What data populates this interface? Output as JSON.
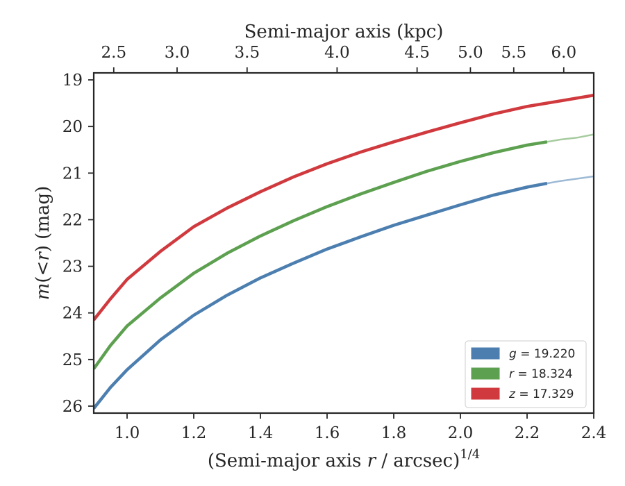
{
  "chart_data": {
    "type": "line",
    "xlabel_bottom": "(Semi-major axis r / arcsec)",
    "xlabel_bottom_superscript": "1/4",
    "xlabel_bottom_italic_symbol": "r",
    "xlabel_top": "Semi-major axis (kpc)",
    "ylabel": "m(<r) (mag)",
    "ylabel_parts": {
      "pre": "m",
      "mid": "(<",
      "sym": "r",
      "post": ") (mag)"
    },
    "xlim": [
      0.9,
      2.4
    ],
    "ylim": [
      26.15,
      18.85
    ],
    "y_inverted": true,
    "x_ticks": [
      1.0,
      1.2,
      1.4,
      1.6,
      1.8,
      2.0,
      2.2,
      2.4
    ],
    "x_tick_labels": [
      "1.0",
      "1.2",
      "1.4",
      "1.6",
      "1.8",
      "2.0",
      "2.2",
      "2.4"
    ],
    "y_ticks": [
      19,
      20,
      21,
      22,
      23,
      24,
      25,
      26
    ],
    "y_tick_labels": [
      "19",
      "20",
      "21",
      "22",
      "23",
      "24",
      "25",
      "26"
    ],
    "top_ticks_kpc": [
      2.5,
      3.0,
      3.5,
      4.0,
      4.5,
      5.0,
      5.5,
      6.0
    ],
    "top_tick_labels": [
      "2.5",
      "3.0",
      "3.5",
      "4.0",
      "4.5",
      "5.0",
      "5.5",
      "6.0"
    ],
    "top_tick_positions_x": [
      0.96,
      1.15,
      1.36,
      1.63,
      1.87,
      2.03,
      2.16,
      2.31
    ],
    "grid": false,
    "legend_placement": "lower-right",
    "series": [
      {
        "name": "g = 19.220",
        "legend_symbol": "g",
        "legend_value": "= 19.220",
        "color": "#4C7FB0",
        "x": [
          0.9,
          0.95,
          1.0,
          1.1,
          1.2,
          1.3,
          1.4,
          1.5,
          1.6,
          1.7,
          1.8,
          1.9,
          2.0,
          2.1,
          2.2,
          2.26
        ],
        "y": [
          26.05,
          25.6,
          25.22,
          24.58,
          24.05,
          23.62,
          23.25,
          22.93,
          22.63,
          22.37,
          22.12,
          21.9,
          21.68,
          21.47,
          21.3,
          21.22
        ],
        "model_x": [
          2.26,
          2.3,
          2.35,
          2.4
        ],
        "model_y": [
          21.22,
          21.17,
          21.12,
          21.07
        ]
      },
      {
        "name": "r = 18.324",
        "legend_symbol": "r",
        "legend_value": "= 18.324",
        "color": "#5DA050",
        "x": [
          0.9,
          0.95,
          1.0,
          1.1,
          1.2,
          1.3,
          1.4,
          1.5,
          1.6,
          1.7,
          1.8,
          1.9,
          2.0,
          2.1,
          2.2,
          2.26
        ],
        "y": [
          25.2,
          24.7,
          24.28,
          23.68,
          23.15,
          22.72,
          22.35,
          22.02,
          21.72,
          21.45,
          21.2,
          20.96,
          20.75,
          20.56,
          20.4,
          20.33
        ],
        "model_x": [
          2.26,
          2.3,
          2.35,
          2.4
        ],
        "model_y": [
          20.33,
          20.28,
          20.24,
          20.17
        ]
      },
      {
        "name": "z = 17.329",
        "legend_symbol": "z",
        "legend_value": "= 17.329",
        "color": "#D03A3E",
        "x": [
          0.9,
          0.95,
          1.0,
          1.1,
          1.2,
          1.3,
          1.4,
          1.5,
          1.6,
          1.7,
          1.8,
          1.9,
          2.0,
          2.1,
          2.2,
          2.3,
          2.4
        ],
        "y": [
          24.15,
          23.7,
          23.28,
          22.68,
          22.15,
          21.75,
          21.4,
          21.08,
          20.8,
          20.55,
          20.33,
          20.12,
          19.92,
          19.73,
          19.57,
          19.45,
          19.33
        ],
        "model_x": [],
        "model_y": []
      }
    ]
  }
}
